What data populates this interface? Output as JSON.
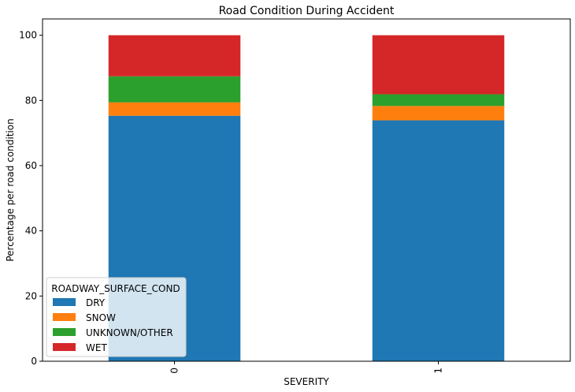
{
  "chart_data": {
    "type": "bar",
    "stacked": true,
    "title": "Road Condition During Accident",
    "xlabel": "SEVERITY",
    "ylabel": "Percentage per road condition",
    "categories": [
      "0",
      "1"
    ],
    "ylim": [
      0,
      105
    ],
    "yticks": [
      0,
      20,
      40,
      60,
      80,
      100
    ],
    "grid": false,
    "legend": {
      "title": "ROADWAY_SURFACE_COND",
      "placement": "lower-left"
    },
    "series": [
      {
        "name": "DRY",
        "color": "#1f77b4",
        "values": [
          75.3,
          73.9
        ]
      },
      {
        "name": "SNOW",
        "color": "#ff7f0e",
        "values": [
          4.1,
          4.4
        ]
      },
      {
        "name": "UNKNOWN/OTHER",
        "color": "#2ca02c",
        "values": [
          8.0,
          3.6
        ]
      },
      {
        "name": "WET",
        "color": "#d62728",
        "values": [
          12.6,
          18.1
        ]
      }
    ]
  }
}
